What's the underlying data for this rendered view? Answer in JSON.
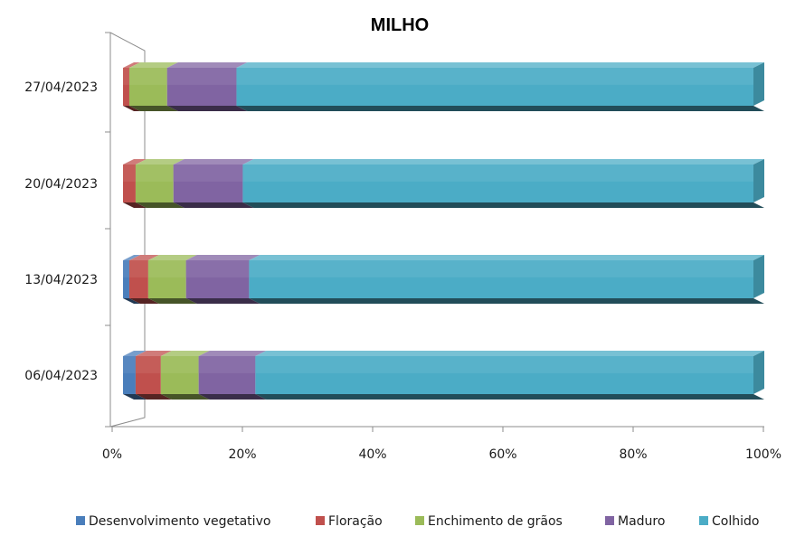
{
  "chart_data": {
    "type": "bar",
    "orientation": "horizontal",
    "stacked": "percent",
    "title": "MILHO",
    "categories": [
      "27/04/2023",
      "20/04/2023",
      "13/04/2023",
      "06/04/2023"
    ],
    "series": [
      {
        "name": "Desenvolvimento vegetativo",
        "color": "#4a7ebb",
        "values": [
          0,
          0,
          1,
          2
        ]
      },
      {
        "name": "Floração",
        "color": "#c0504d",
        "values": [
          1,
          2,
          3,
          4
        ]
      },
      {
        "name": "Enchimento de grãos",
        "color": "#9bbb59",
        "values": [
          6,
          6,
          6,
          6
        ]
      },
      {
        "name": "Maduro",
        "color": "#8064a2",
        "values": [
          11,
          11,
          10,
          9
        ]
      },
      {
        "name": "Colhido",
        "color": "#4bacc6",
        "values": [
          82,
          81,
          80,
          79
        ]
      }
    ],
    "x_ticks": [
      "0%",
      "20%",
      "40%",
      "60%",
      "80%",
      "100%"
    ],
    "xlim": [
      0,
      100
    ],
    "legend_position": "bottom",
    "grid": false
  }
}
